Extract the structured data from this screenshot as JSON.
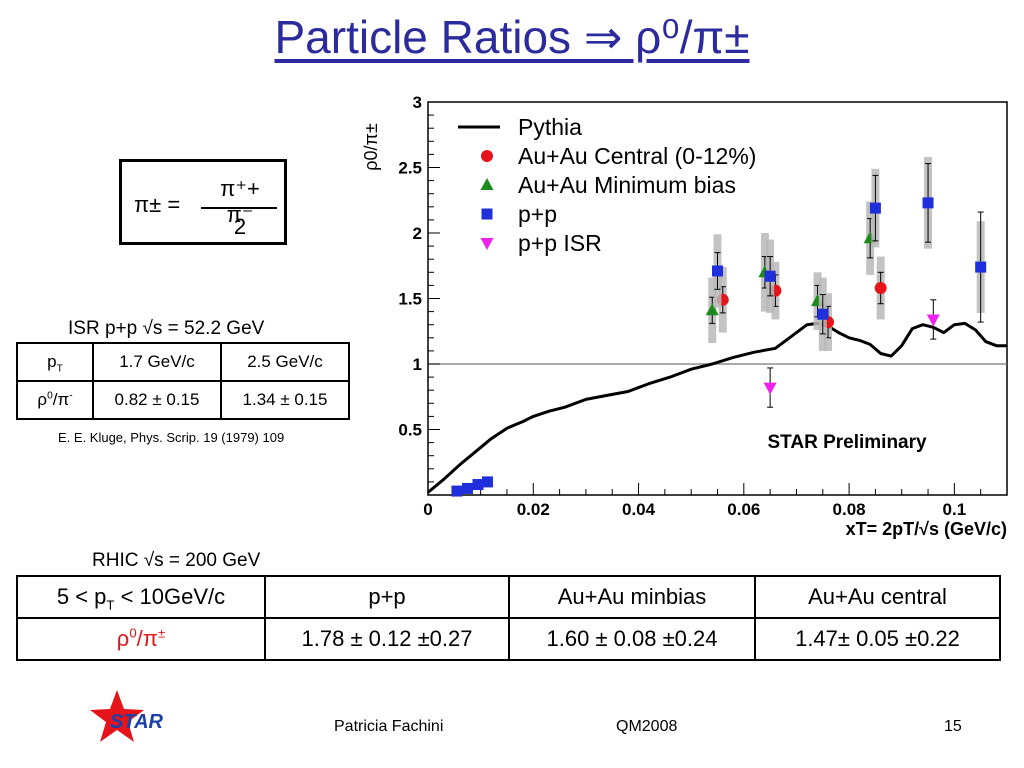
{
  "slide": {
    "title": "Particle Ratios ⇒ ρ⁰/π±",
    "formula": {
      "lhs": "π± =",
      "numerator": "π⁺+ π⁻",
      "denominator": "2"
    },
    "isr": {
      "title": "ISR p+p √s = 52.2 GeV",
      "header": [
        "pT",
        "1.7 GeV/c",
        "2.5 GeV/c"
      ],
      "row": [
        "ρ0/π-",
        "0.82 ± 0.15",
        "1.34 ± 0.15"
      ],
      "reference": "E. E. Kluge, Phys. Scrip. 19 (1979) 109"
    },
    "rhic": {
      "title": "RHIC √s = 200 GeV",
      "header": [
        "5 < pT < 10GeV/c",
        "p+p",
        "Au+Au minbias",
        "Au+Au central"
      ],
      "row": [
        "ρ0/π±",
        "1.78 ± 0.12 ±0.27",
        "1.60 ± 0.08 ±0.24",
        "1.47± 0.05 ±0.22"
      ]
    },
    "footer": {
      "author": "Patricia Fachini",
      "conference": "QM2008",
      "page": "15",
      "logo_text": "STAR"
    },
    "colors": {
      "title": "#2b2b9e",
      "highlight": "#e4141a",
      "logo_star": "#e4141a",
      "logo_text": "#1c3fa8"
    }
  },
  "chart_data": {
    "type": "scatter",
    "ylabel": "ρ0/π±",
    "xlabel": "xT= 2pT/√s (GeV/c)",
    "annotation": "STAR Preliminary",
    "xlim": [
      0,
      0.11
    ],
    "ylim": [
      0,
      3
    ],
    "x_ticks": [
      "0",
      "0.02",
      "0.04",
      "0.06",
      "0.08",
      "0.1"
    ],
    "y_ticks": [
      "0.5",
      "1",
      "1.5",
      "2",
      "2.5",
      "3"
    ],
    "reference_line_y": 1,
    "legend_position": "top-left",
    "series": [
      {
        "name": "Pythia",
        "kind": "line",
        "color": "#000000",
        "x": [
          0,
          0.003,
          0.006,
          0.009,
          0.012,
          0.015,
          0.018,
          0.02,
          0.023,
          0.026,
          0.03,
          0.034,
          0.038,
          0.042,
          0.046,
          0.05,
          0.054,
          0.058,
          0.062,
          0.066,
          0.07,
          0.072,
          0.074,
          0.076,
          0.078,
          0.08,
          0.082,
          0.084,
          0.086,
          0.088,
          0.09,
          0.092,
          0.094,
          0.096,
          0.098,
          0.1,
          0.102,
          0.104,
          0.106,
          0.108,
          0.11
        ],
        "y": [
          0.02,
          0.12,
          0.23,
          0.33,
          0.43,
          0.51,
          0.56,
          0.6,
          0.64,
          0.67,
          0.73,
          0.76,
          0.79,
          0.85,
          0.9,
          0.96,
          1.0,
          1.05,
          1.09,
          1.12,
          1.24,
          1.3,
          1.31,
          1.29,
          1.24,
          1.2,
          1.18,
          1.15,
          1.08,
          1.06,
          1.14,
          1.27,
          1.3,
          1.28,
          1.24,
          1.3,
          1.31,
          1.26,
          1.17,
          1.14,
          1.14
        ]
      },
      {
        "name": "Au+Au Central (0-12%)",
        "kind": "points",
        "marker": "circle",
        "color": "#e4141a",
        "x": [
          0.056,
          0.066,
          0.076,
          0.086
        ],
        "y": [
          1.49,
          1.56,
          1.32,
          1.58
        ],
        "err": [
          0.1,
          0.12,
          0.12,
          0.12
        ],
        "sys": [
          0.25,
          0.22,
          0.22,
          0.24
        ]
      },
      {
        "name": "Au+Au Minimum bias",
        "kind": "points",
        "marker": "triangle-up",
        "color": "#1e8a1e",
        "x": [
          0.054,
          0.064,
          0.074,
          0.084
        ],
        "y": [
          1.41,
          1.7,
          1.48,
          1.96
        ],
        "err": [
          0.1,
          0.12,
          0.12,
          0.15
        ],
        "sys": [
          0.25,
          0.3,
          0.22,
          0.28
        ]
      },
      {
        "name": "p+p",
        "kind": "points",
        "marker": "square",
        "color": "#1f2fdb",
        "x": [
          0.0055,
          0.0075,
          0.0095,
          0.0113,
          0.055,
          0.065,
          0.075,
          0.085,
          0.095,
          0.105
        ],
        "y": [
          0.03,
          0.05,
          0.08,
          0.1,
          1.71,
          1.67,
          1.38,
          2.19,
          2.23,
          1.74
        ],
        "err": [
          0,
          0,
          0,
          0,
          0.14,
          0.15,
          0.15,
          0.25,
          0.3,
          0.42
        ],
        "sys": [
          0,
          0,
          0,
          0,
          0.28,
          0.28,
          0.28,
          0.3,
          0.35,
          0.35
        ]
      },
      {
        "name": "p+p ISR",
        "kind": "points",
        "marker": "triangle-down",
        "color": "#ee22ee",
        "x": [
          0.065,
          0.096
        ],
        "y": [
          0.82,
          1.34
        ],
        "err": [
          0.15,
          0.15
        ],
        "sys": [
          0,
          0
        ]
      }
    ]
  }
}
